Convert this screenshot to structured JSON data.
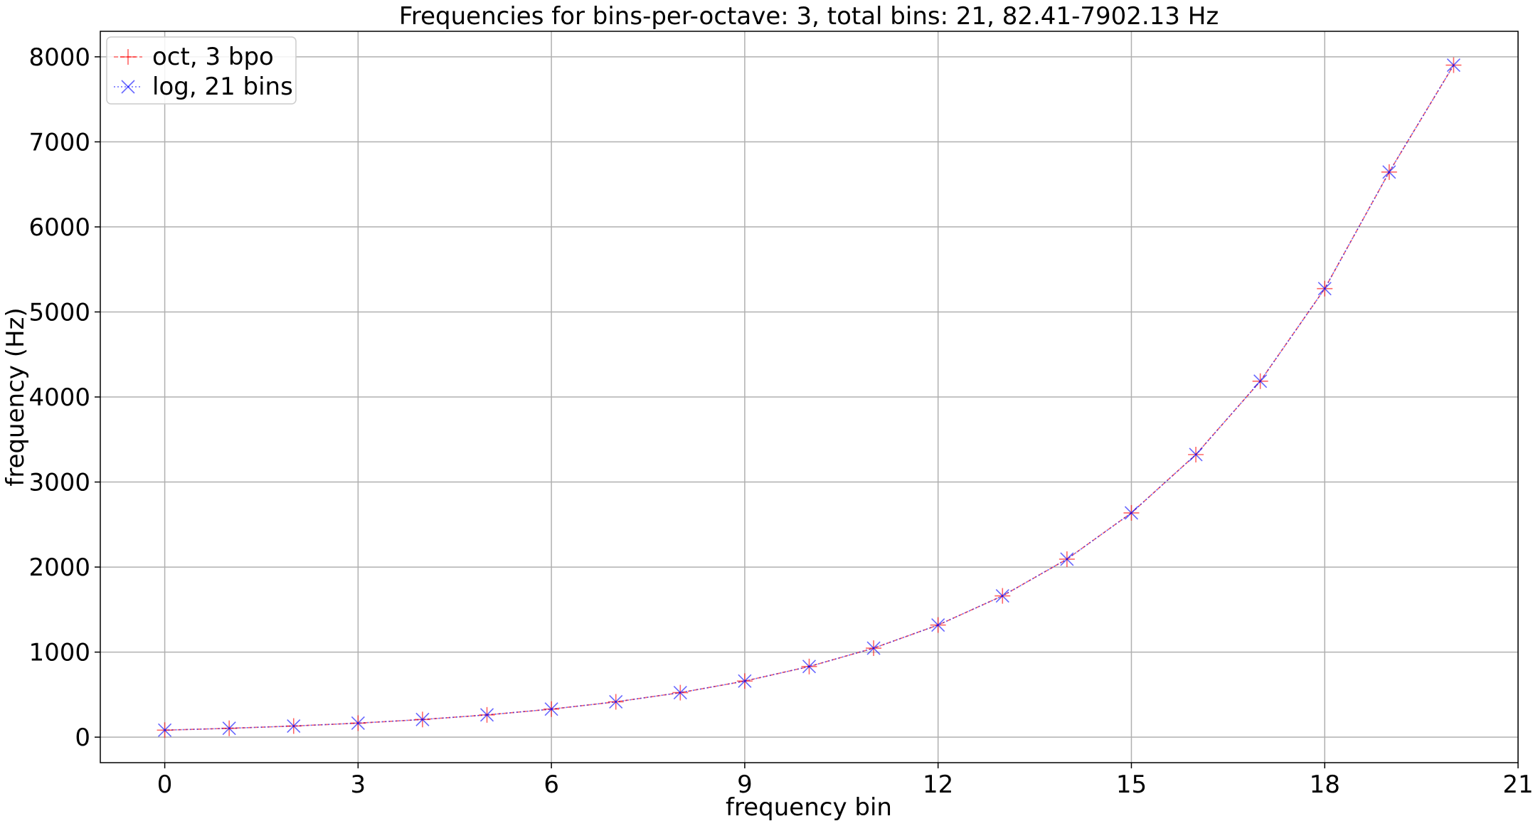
{
  "chart_data": {
    "type": "line",
    "title": "Frequencies for bins-per-octave: 3, total bins: 21, 82.41-7902.13 Hz",
    "xlabel": "frequency bin",
    "ylabel": "frequency (Hz)",
    "xlim": [
      -1,
      21
    ],
    "ylim": [
      -300,
      8300
    ],
    "xticks": [
      0,
      3,
      6,
      9,
      12,
      15,
      18,
      21
    ],
    "yticks": [
      0,
      1000,
      2000,
      3000,
      4000,
      5000,
      6000,
      7000,
      8000
    ],
    "grid": true,
    "legend_position": "top-left",
    "x": [
      0,
      1,
      2,
      3,
      4,
      5,
      6,
      7,
      8,
      9,
      10,
      11,
      12,
      13,
      14,
      15,
      16,
      17,
      18,
      19,
      20
    ],
    "series": [
      {
        "name": "oct, 3 bpo",
        "color": "#ff0000",
        "line_style": "dashed",
        "marker": "plus",
        "values": [
          82.41,
          103.83,
          130.81,
          164.81,
          207.65,
          261.63,
          329.63,
          415.3,
          523.25,
          659.26,
          830.61,
          1046.5,
          1318.51,
          1661.22,
          2093.0,
          2637.02,
          3322.44,
          4186.01,
          5274.04,
          6644.88,
          7902.13
        ]
      },
      {
        "name": "log, 21 bins",
        "color": "#0000ff",
        "line_style": "dotted",
        "marker": "x",
        "values": [
          82.41,
          103.83,
          130.81,
          164.81,
          207.65,
          261.63,
          329.63,
          415.3,
          523.25,
          659.26,
          830.61,
          1046.5,
          1318.51,
          1661.22,
          2093.0,
          2637.02,
          3322.44,
          4186.01,
          5274.04,
          6644.88,
          7902.13
        ]
      }
    ]
  }
}
